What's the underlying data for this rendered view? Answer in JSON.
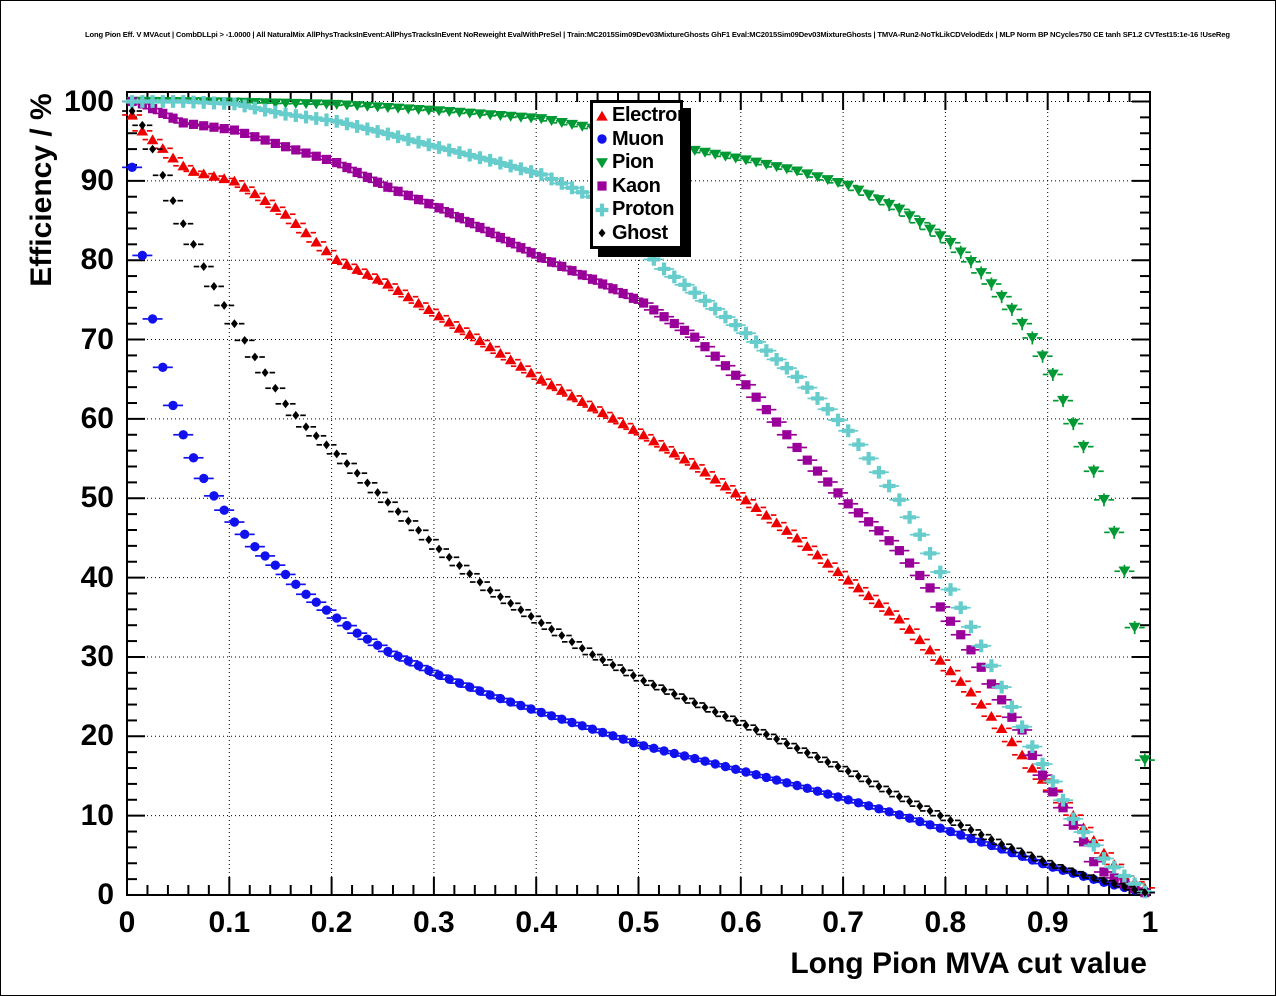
{
  "page": {
    "title": "Long Pion Eff. V MVAcut | CombDLLpi > -1.0000 | All NaturalMix AllPhysTracksInEvent:AllPhysTracksInEvent NoReweight EvalWithPreSel | Train:MC2015Sim09Dev03MixtureGhosts GhF1 Eval:MC2015Sim09Dev03MixtureGhosts | TMVA-Run2-NoTkLikCDVelodEdx | MLP Norm BP NCycles750 CE tanh SF1.2 CVTest15:1e-16 !UseReg"
  },
  "chart_data": {
    "type": "scatter",
    "xlabel": "Long Pion MVA cut value",
    "ylabel": "Efficiency / %",
    "xlim": [
      0,
      1
    ],
    "ylim": [
      0,
      101.2
    ],
    "grid": "dotted",
    "legend_position": "top-center",
    "marker_step": 0.01,
    "xticks": {
      "values": [
        0,
        0.1,
        0.2,
        0.3,
        0.4,
        0.5,
        0.6,
        0.7,
        0.8,
        0.9,
        1
      ],
      "labels": [
        "0",
        "0.1",
        "0.2",
        "0.3",
        "0.4",
        "0.5",
        "0.6",
        "0.7",
        "0.8",
        "0.9",
        "1"
      ],
      "minor_step": 0.02
    },
    "yticks": {
      "values": [
        0,
        10,
        20,
        30,
        40,
        50,
        60,
        70,
        80,
        90,
        100
      ],
      "labels": [
        "0",
        "10",
        "20",
        "30",
        "40",
        "50",
        "60",
        "70",
        "80",
        "90",
        "100"
      ],
      "minor_step": 2
    },
    "series": [
      {
        "name": "Electron",
        "color": "#ee0000",
        "marker": "triangle-up",
        "points": [
          [
            0.005,
            98.3
          ],
          [
            0.015,
            96.3
          ],
          [
            0.025,
            95.2
          ],
          [
            0.035,
            94.1
          ],
          [
            0.045,
            92.9
          ],
          [
            0.055,
            91.9
          ],
          [
            0.065,
            91.2
          ],
          [
            0.085,
            90.6
          ],
          [
            0.105,
            90.0
          ],
          [
            0.125,
            88.4
          ],
          [
            0.155,
            85.8
          ],
          [
            0.185,
            82.3
          ],
          [
            0.205,
            80.1
          ],
          [
            0.255,
            77.0
          ],
          [
            0.305,
            73.0
          ],
          [
            0.355,
            69.1
          ],
          [
            0.405,
            65.0
          ],
          [
            0.455,
            61.5
          ],
          [
            0.505,
            58.0
          ],
          [
            0.555,
            54.2
          ],
          [
            0.605,
            49.8
          ],
          [
            0.655,
            45.0
          ],
          [
            0.705,
            39.7
          ],
          [
            0.755,
            34.8
          ],
          [
            0.795,
            29.6
          ],
          [
            0.825,
            25.6
          ],
          [
            0.855,
            21.0
          ],
          [
            0.885,
            16.0
          ],
          [
            0.905,
            13.2
          ],
          [
            0.935,
            8.5
          ],
          [
            0.955,
            5.3
          ],
          [
            0.975,
            2.4
          ],
          [
            0.995,
            0.9
          ]
        ]
      },
      {
        "name": "Muon",
        "color": "#1111ee",
        "marker": "circle",
        "points": [
          [
            0.005,
            91.7
          ],
          [
            0.015,
            80.6
          ],
          [
            0.025,
            72.6
          ],
          [
            0.035,
            66.5
          ],
          [
            0.045,
            61.7
          ],
          [
            0.055,
            58.0
          ],
          [
            0.065,
            55.1
          ],
          [
            0.075,
            52.5
          ],
          [
            0.085,
            50.3
          ],
          [
            0.095,
            48.5
          ],
          [
            0.105,
            47.0
          ],
          [
            0.125,
            43.9
          ],
          [
            0.155,
            40.4
          ],
          [
            0.175,
            37.9
          ],
          [
            0.205,
            34.9
          ],
          [
            0.225,
            33.0
          ],
          [
            0.255,
            30.7
          ],
          [
            0.305,
            27.7
          ],
          [
            0.355,
            25.2
          ],
          [
            0.405,
            23.0
          ],
          [
            0.455,
            20.9
          ],
          [
            0.505,
            18.8
          ],
          [
            0.555,
            17.2
          ],
          [
            0.605,
            15.5
          ],
          [
            0.655,
            13.8
          ],
          [
            0.705,
            12.0
          ],
          [
            0.755,
            10.1
          ],
          [
            0.805,
            8.0
          ],
          [
            0.855,
            5.8
          ],
          [
            0.905,
            3.5
          ],
          [
            0.955,
            1.6
          ],
          [
            0.995,
            0.3
          ]
        ]
      },
      {
        "name": "Pion",
        "color": "#009933",
        "marker": "triangle-down",
        "points": [
          [
            0.005,
            100.0
          ],
          [
            0.105,
            99.9
          ],
          [
            0.205,
            99.6
          ],
          [
            0.305,
            98.8
          ],
          [
            0.405,
            97.8
          ],
          [
            0.455,
            96.6
          ],
          [
            0.505,
            95.0
          ],
          [
            0.555,
            93.8
          ],
          [
            0.605,
            92.6
          ],
          [
            0.655,
            91.2
          ],
          [
            0.705,
            89.4
          ],
          [
            0.755,
            86.4
          ],
          [
            0.805,
            82.2
          ],
          [
            0.825,
            79.8
          ],
          [
            0.845,
            77.0
          ],
          [
            0.865,
            73.8
          ],
          [
            0.885,
            70.2
          ],
          [
            0.905,
            65.6
          ],
          [
            0.915,
            62.3
          ],
          [
            0.925,
            59.4
          ],
          [
            0.935,
            56.5
          ],
          [
            0.945,
            53.4
          ],
          [
            0.955,
            49.8
          ],
          [
            0.965,
            45.7
          ],
          [
            0.975,
            40.8
          ],
          [
            0.985,
            33.7
          ],
          [
            0.995,
            17.0
          ]
        ]
      },
      {
        "name": "Kaon",
        "color": "#990099",
        "marker": "square",
        "points": [
          [
            0.005,
            100.0
          ],
          [
            0.015,
            99.7
          ],
          [
            0.055,
            97.3
          ],
          [
            0.105,
            96.4
          ],
          [
            0.155,
            94.3
          ],
          [
            0.205,
            92.3
          ],
          [
            0.255,
            89.2
          ],
          [
            0.305,
            86.6
          ],
          [
            0.355,
            83.5
          ],
          [
            0.405,
            80.3
          ],
          [
            0.455,
            77.6
          ],
          [
            0.505,
            74.6
          ],
          [
            0.555,
            70.3
          ],
          [
            0.605,
            64.3
          ],
          [
            0.635,
            59.6
          ],
          [
            0.665,
            54.8
          ],
          [
            0.705,
            49.3
          ],
          [
            0.735,
            45.9
          ],
          [
            0.755,
            43.4
          ],
          [
            0.785,
            38.7
          ],
          [
            0.795,
            36.3
          ],
          [
            0.805,
            34.5
          ],
          [
            0.815,
            32.8
          ],
          [
            0.825,
            30.9
          ],
          [
            0.835,
            28.7
          ],
          [
            0.845,
            26.6
          ],
          [
            0.855,
            24.6
          ],
          [
            0.865,
            22.4
          ],
          [
            0.875,
            20.8
          ],
          [
            0.885,
            17.6
          ],
          [
            0.895,
            15.1
          ],
          [
            0.905,
            13.0
          ],
          [
            0.915,
            11.0
          ],
          [
            0.925,
            8.8
          ],
          [
            0.935,
            6.7
          ],
          [
            0.945,
            4.2
          ],
          [
            0.955,
            2.9
          ],
          [
            0.975,
            1.4
          ],
          [
            0.995,
            0.3
          ]
        ]
      },
      {
        "name": "Proton",
        "color": "#66cccc",
        "marker": "plus",
        "points": [
          [
            0.005,
            100.0
          ],
          [
            0.055,
            100.0
          ],
          [
            0.105,
            99.7
          ],
          [
            0.155,
            98.4
          ],
          [
            0.205,
            97.5
          ],
          [
            0.255,
            95.9
          ],
          [
            0.305,
            94.2
          ],
          [
            0.355,
            92.6
          ],
          [
            0.405,
            90.8
          ],
          [
            0.455,
            88.0
          ],
          [
            0.475,
            86.0
          ],
          [
            0.505,
            81.3
          ],
          [
            0.525,
            78.9
          ],
          [
            0.555,
            75.9
          ],
          [
            0.605,
            70.8
          ],
          [
            0.655,
            65.3
          ],
          [
            0.705,
            58.5
          ],
          [
            0.755,
            49.8
          ],
          [
            0.775,
            45.4
          ],
          [
            0.795,
            40.7
          ],
          [
            0.805,
            38.5
          ],
          [
            0.815,
            36.2
          ],
          [
            0.825,
            33.8
          ],
          [
            0.835,
            31.4
          ],
          [
            0.845,
            28.9
          ],
          [
            0.855,
            26.2
          ],
          [
            0.865,
            23.7
          ],
          [
            0.875,
            21.2
          ],
          [
            0.885,
            18.7
          ],
          [
            0.905,
            14.3
          ],
          [
            0.925,
            9.6
          ],
          [
            0.955,
            4.6
          ],
          [
            0.975,
            2.4
          ],
          [
            0.995,
            0.4
          ]
        ]
      },
      {
        "name": "Ghost",
        "color": "#000000",
        "marker": "diamond",
        "points": [
          [
            0.005,
            98.8
          ],
          [
            0.015,
            97.0
          ],
          [
            0.025,
            94.0
          ],
          [
            0.035,
            90.7
          ],
          [
            0.045,
            87.5
          ],
          [
            0.055,
            84.6
          ],
          [
            0.065,
            82.0
          ],
          [
            0.075,
            79.2
          ],
          [
            0.085,
            76.7
          ],
          [
            0.095,
            74.3
          ],
          [
            0.105,
            72.0
          ],
          [
            0.125,
            67.8
          ],
          [
            0.155,
            61.9
          ],
          [
            0.175,
            59.0
          ],
          [
            0.205,
            55.6
          ],
          [
            0.255,
            49.5
          ],
          [
            0.305,
            43.6
          ],
          [
            0.355,
            38.4
          ],
          [
            0.405,
            34.3
          ],
          [
            0.455,
            30.3
          ],
          [
            0.505,
            27.0
          ],
          [
            0.555,
            24.2
          ],
          [
            0.605,
            21.4
          ],
          [
            0.655,
            18.5
          ],
          [
            0.705,
            15.6
          ],
          [
            0.755,
            12.4
          ],
          [
            0.805,
            9.4
          ],
          [
            0.855,
            6.4
          ],
          [
            0.905,
            3.8
          ],
          [
            0.935,
            2.5
          ],
          [
            0.955,
            1.8
          ],
          [
            0.995,
            0.3
          ]
        ]
      }
    ]
  }
}
